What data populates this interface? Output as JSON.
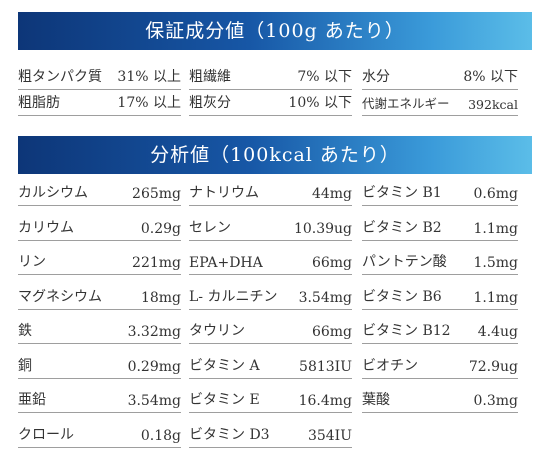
{
  "guarantee": {
    "title": "保証成分値（100g あたり）",
    "rows": [
      [
        {
          "label": "粗タンパク質",
          "value": "31% 以上"
        },
        {
          "label": "粗繊維",
          "value": "7% 以下"
        },
        {
          "label": "水分",
          "value": "8% 以下"
        }
      ],
      [
        {
          "label": "粗脂肪",
          "value": "17% 以上"
        },
        {
          "label": "粗灰分",
          "value": "10% 以下"
        },
        {
          "label": "代謝エネルギー",
          "value": "392kcal"
        }
      ]
    ]
  },
  "analysis": {
    "title": "分析値（100kcal あたり）",
    "rows": [
      [
        {
          "label": "カルシウム",
          "value": "265mg"
        },
        {
          "label": "ナトリウム",
          "value": "44mg"
        },
        {
          "label": "ビタミン B1",
          "value": "0.6mg"
        }
      ],
      [
        {
          "label": "カリウム",
          "value": "0.29g"
        },
        {
          "label": "セレン",
          "value": "10.39ug"
        },
        {
          "label": "ビタミン B2",
          "value": "1.1mg"
        }
      ],
      [
        {
          "label": "リン",
          "value": "221mg"
        },
        {
          "label": "EPA+DHA",
          "value": "66mg"
        },
        {
          "label": "パントテン酸",
          "value": "1.5mg"
        }
      ],
      [
        {
          "label": "マグネシウム",
          "value": "18mg"
        },
        {
          "label": "L- カルニチン",
          "value": "3.54mg"
        },
        {
          "label": "ビタミン B6",
          "value": "1.1mg"
        }
      ],
      [
        {
          "label": "鉄",
          "value": "3.32mg"
        },
        {
          "label": "タウリン",
          "value": "66mg"
        },
        {
          "label": "ビタミン B12",
          "value": "4.4ug"
        }
      ],
      [
        {
          "label": "銅",
          "value": "0.29mg"
        },
        {
          "label": "ビタミン A",
          "value": "5813IU"
        },
        {
          "label": "ビオチン",
          "value": "72.9ug"
        }
      ],
      [
        {
          "label": "亜鉛",
          "value": "3.54mg"
        },
        {
          "label": "ビタミン E",
          "value": "16.4mg"
        },
        {
          "label": "葉酸",
          "value": "0.3mg"
        }
      ],
      [
        {
          "label": "クロール",
          "value": "0.18g"
        },
        {
          "label": "ビタミン D3",
          "value": "354IU"
        }
      ]
    ]
  }
}
